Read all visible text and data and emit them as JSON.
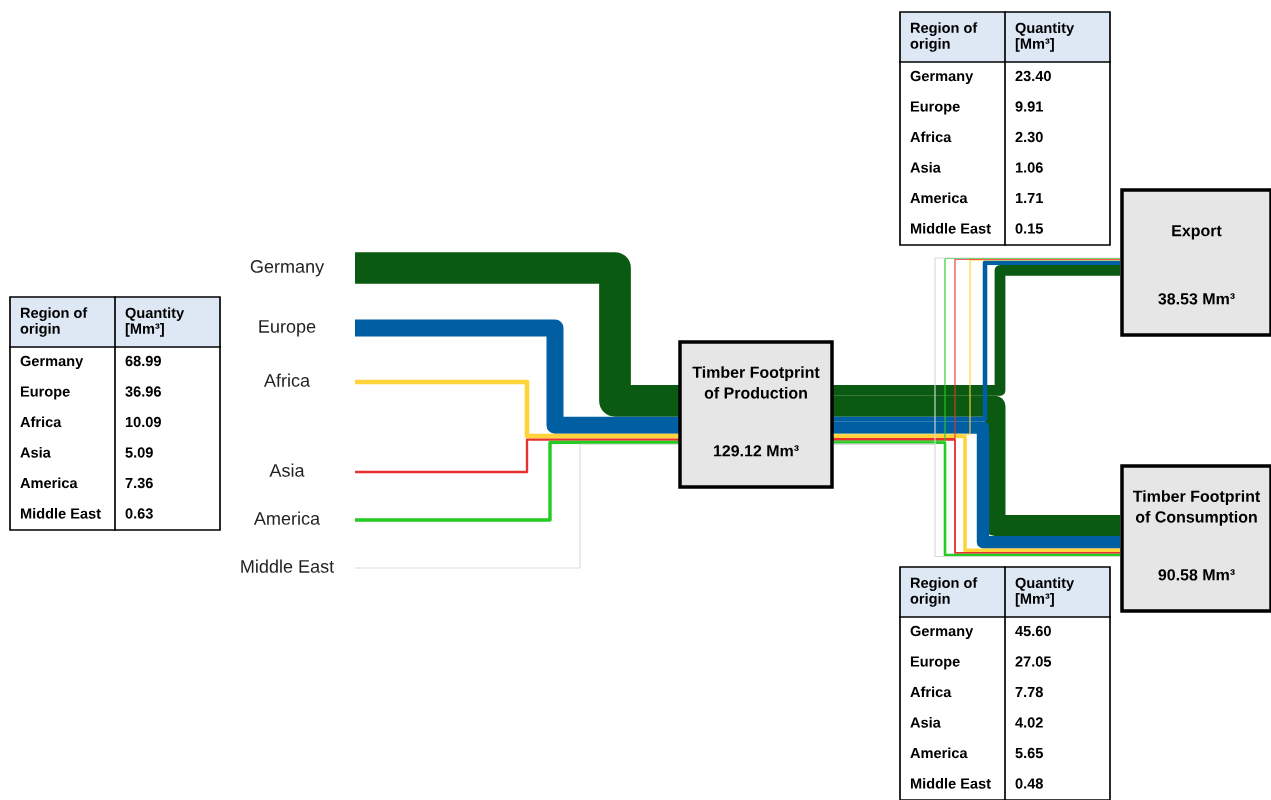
{
  "chart_data": {
    "type": "other",
    "categories": [
      "Germany",
      "Europe",
      "Africa",
      "Asia",
      "America",
      "Middle East"
    ],
    "colors": [
      "#0b5a12",
      "#005fa3",
      "#ffd43b",
      "#e8322e",
      "#22cc22",
      "#d9d9d9"
    ],
    "series": [
      {
        "name": "Timber Footprint\nof Production",
        "values": [
          68.99,
          36.96,
          10.09,
          5.09,
          7.36,
          0.63
        ],
        "value_labels": [
          "68.99",
          "36.96",
          "10.09",
          "5.09",
          "7.36",
          "0.63"
        ]
      },
      {
        "name": "Export",
        "values": [
          23.4,
          9.91,
          2.3,
          1.06,
          1.71,
          0.15
        ],
        "value_labels": [
          "23.40",
          "9.91",
          "2.30",
          "1.06",
          "1.71",
          "0.15"
        ]
      },
      {
        "name": "Timber Footprint\nof Consumption",
        "values": [
          45.6,
          27.05,
          7.78,
          4.02,
          5.65,
          0.48
        ],
        "value_labels": [
          "45.60",
          "27.05",
          "7.78",
          "4.02",
          "5.65",
          "0.48"
        ]
      }
    ],
    "annotations": [
      "Region of\norigin",
      "Quantity\n[Mm³]",
      "129.12 Mm³",
      "38.53 Mm³",
      "90.58 Mm³"
    ]
  }
}
